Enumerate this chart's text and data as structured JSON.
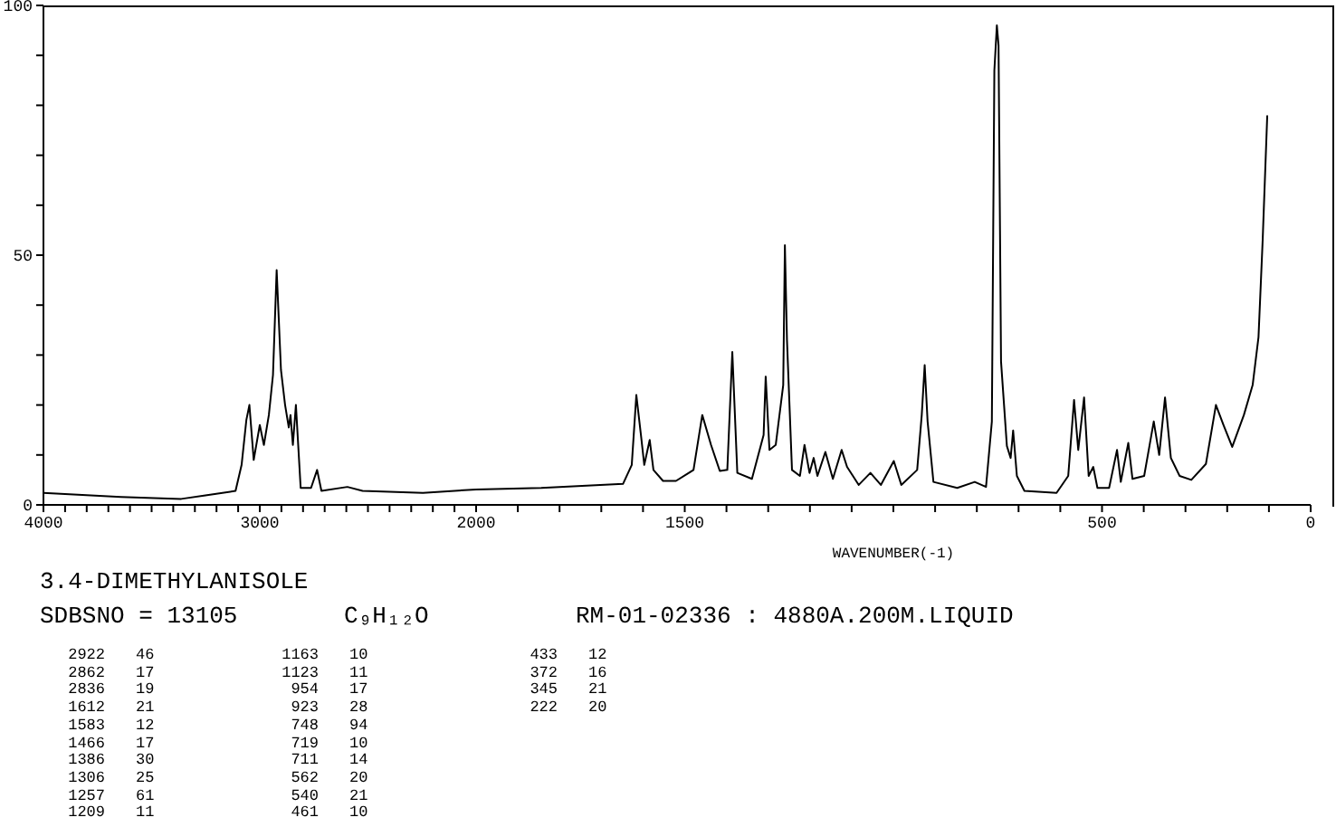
{
  "chart_data": [
    {
      "type": "line",
      "title": "3.4-DIMETHYLANISOLE",
      "annotations": [
        "SDBSNO = 13105",
        "C₉H₁₂O",
        "RM-01-02336 : 4880A.200M.LIQUID",
        "2922 46",
        "2862 17",
        "2836 19",
        "1612 21",
        "1583 12",
        "1466 17",
        "1386 30",
        "1306 25",
        "1257 61",
        "1209 11",
        "1163 10",
        "1123 11",
        "954 17",
        "923 28",
        "748 94",
        "719 10",
        "711 14",
        "562 20",
        "540 21",
        "461 10",
        "433 12",
        "372 16",
        "345 21",
        "222 20"
      ],
      "series": [
        {
          "color": "#000000",
          "x": [
            4000,
            3642,
            3363,
            3251,
            3112,
            3084,
            3062,
            3048,
            3028,
            3000,
            2981,
            2958,
            2939,
            2922,
            2902,
            2883,
            2866,
            2858,
            2847,
            2833,
            2811,
            2763,
            2735,
            2715,
            2595,
            2525,
            2246,
            2000
          ],
          "values": [
            2.4,
            1.6,
            1.2,
            1.9,
            2.8,
            8,
            17,
            20,
            9,
            16,
            12,
            18,
            26,
            47,
            27,
            20,
            15.5,
            18,
            12,
            20,
            3.4,
            3.4,
            7,
            2.8,
            3.6,
            2.8,
            2.4,
            3.1
          ]
        }
      ],
      "xlim": [
        4000,
        2000
      ],
      "xticks": [
        4000,
        {
          "value": 3900,
          "label": null
        },
        {
          "value": 3800,
          "label": null
        },
        {
          "value": 3700,
          "label": null
        },
        {
          "value": 3600,
          "label": null
        },
        {
          "value": 3500,
          "label": null
        },
        {
          "value": 3400,
          "label": null
        },
        {
          "value": 3300,
          "label": null
        },
        {
          "value": 3200,
          "label": null
        },
        {
          "value": 3100,
          "label": null
        },
        3000,
        {
          "value": 2900,
          "label": null
        },
        {
          "value": 2800,
          "label": null
        },
        {
          "value": 2700,
          "label": null
        },
        {
          "value": 2600,
          "label": null
        },
        {
          "value": 2500,
          "label": null
        },
        {
          "value": 2400,
          "label": null
        },
        {
          "value": 2300,
          "label": null
        },
        {
          "value": 2200,
          "label": null
        },
        {
          "value": 2100,
          "label": null
        },
        2000
      ],
      "ylim": [
        0,
        100
      ],
      "yticks": [
        0,
        {
          "value": 10,
          "label": null
        },
        {
          "value": 20,
          "label": null
        },
        {
          "value": 30,
          "label": null
        },
        {
          "value": 40,
          "label": null
        },
        50,
        {
          "value": 60,
          "label": null
        },
        {
          "value": 70,
          "label": null
        },
        {
          "value": 80,
          "label": null
        },
        {
          "value": 90,
          "label": null
        },
        100
      ]
    },
    {
      "type": "line",
      "xlabel": "WAVENUMBER(-1)",
      "tick_labels": "x",
      "series": [
        {
          "color": "#000000",
          "x": [
            2000,
            1844,
            1648,
            1627,
            1616,
            1605,
            1597,
            1584,
            1575,
            1552,
            1521,
            1479,
            1458,
            1437,
            1416,
            1398,
            1386,
            1374,
            1339,
            1311,
            1306,
            1297,
            1282,
            1264,
            1260,
            1255,
            1243,
            1224,
            1213,
            1201,
            1191,
            1182,
            1163,
            1145,
            1124,
            1111,
            1083,
            1055,
            1030,
            999,
            981,
            943,
            932,
            925,
            918,
            904,
            847,
            805,
            778,
            764,
            758,
            752,
            748,
            742,
            728,
            719,
            713,
            704,
            686,
            609,
            581,
            567,
            557,
            543,
            532,
            521,
            511,
            483,
            464,
            455,
            437,
            427,
            399,
            376,
            363,
            349,
            335,
            314,
            286,
            251,
            227,
            209,
            188,
            160,
            139,
            125,
            115,
            104
          ],
          "values": [
            3.1,
            3.4,
            4.2,
            8,
            22,
            14,
            8,
            13,
            7,
            4.8,
            4.8,
            7,
            18,
            12,
            6.8,
            7,
            30.6,
            6.4,
            5.2,
            14,
            25.7,
            11,
            12,
            24,
            52,
            33,
            7,
            5.8,
            12,
            6.4,
            9.4,
            5.8,
            10.6,
            5.2,
            11,
            7.6,
            4,
            6.4,
            4,
            8.8,
            4,
            7,
            18,
            28,
            16.7,
            4.6,
            3.4,
            4.6,
            3.6,
            16.7,
            87,
            96,
            92,
            28.7,
            11.8,
            9.4,
            14.9,
            5.8,
            2.8,
            2.4,
            5.8,
            21,
            11,
            21.5,
            5.8,
            7.6,
            3.4,
            3.4,
            11,
            4.6,
            12.4,
            5.2,
            5.8,
            16.7,
            10,
            21.5,
            9.4,
            5.8,
            5,
            8.2,
            20,
            16,
            11.6,
            18,
            24,
            33.6,
            53,
            78
          ]
        }
      ],
      "xlim": [
        2000,
        0
      ],
      "xticks": [
        {
          "value": 2000,
          "label": null
        },
        {
          "value": 1900,
          "label": null
        },
        {
          "value": 1800,
          "label": null
        },
        {
          "value": 1700,
          "label": null
        },
        {
          "value": 1600,
          "label": null
        },
        1500,
        {
          "value": 1400,
          "label": null
        },
        {
          "value": 1300,
          "label": null
        },
        {
          "value": 1200,
          "label": null
        },
        {
          "value": 1100,
          "label": null
        },
        {
          "value": 1000,
          "label": null
        },
        {
          "value": 900,
          "label": null
        },
        {
          "value": 800,
          "label": null
        },
        {
          "value": 700,
          "label": null
        },
        {
          "value": 600,
          "label": null
        },
        500,
        {
          "value": 400,
          "label": null
        },
        {
          "value": 300,
          "label": null
        },
        {
          "value": 200,
          "label": null
        },
        {
          "value": 100,
          "label": null
        },
        0
      ],
      "ylim": [
        0,
        100
      ],
      "yticks": [
        0,
        50,
        100
      ]
    }
  ]
}
